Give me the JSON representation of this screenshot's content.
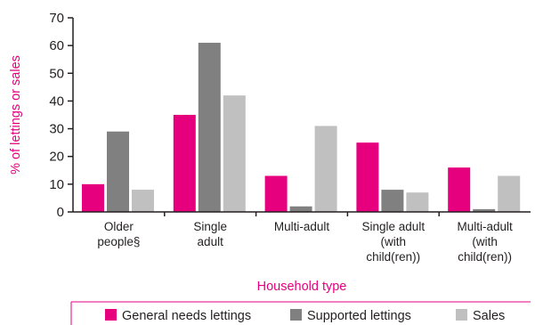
{
  "chart_data": {
    "type": "bar",
    "ylabel": "% of lettings or sales",
    "xlabel": "Household type",
    "ylim": [
      0,
      70
    ],
    "yticks": [
      0,
      10,
      20,
      30,
      40,
      50,
      60,
      70
    ],
    "grid": false,
    "legend_position": "bottom",
    "categories": [
      [
        "Older",
        "people§"
      ],
      [
        "Single",
        "adult"
      ],
      [
        "Multi-adult"
      ],
      [
        "Single adult",
        "(with",
        "child(ren))"
      ],
      [
        "Multi-adult",
        "(with",
        "child(ren))"
      ]
    ],
    "series": [
      {
        "name": "General needs lettings",
        "color": "#e6007e",
        "values": [
          10,
          35,
          13,
          25,
          16
        ]
      },
      {
        "name": "Supported lettings",
        "color": "#808080",
        "values": [
          29,
          61,
          2,
          8,
          1
        ]
      },
      {
        "name": "Sales",
        "color": "#c0c0c0",
        "values": [
          8,
          42,
          31,
          7,
          13
        ]
      }
    ],
    "axis_title_color": "#e6007e",
    "axis_color": "#231f20"
  }
}
